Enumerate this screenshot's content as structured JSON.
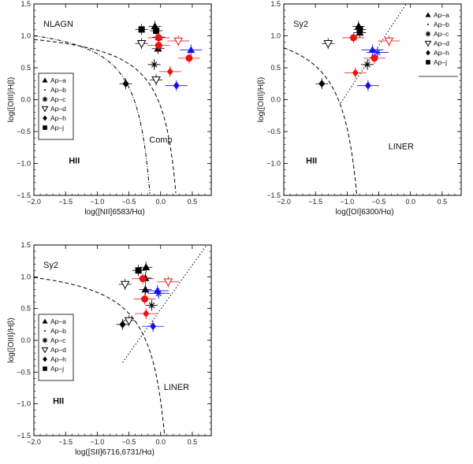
{
  "chart_data": [
    {
      "id": "nii",
      "type": "scatter",
      "title": "NLAGN",
      "xlabel": "log([NII]6583/Hα)",
      "ylabel": "log([OIII]/Hβ)",
      "xlim": [
        -2.0,
        0.8
      ],
      "ylim": [
        -1.5,
        1.5
      ],
      "xticks": [
        -2.0,
        -1.5,
        -1.0,
        -0.5,
        0.0,
        0.5
      ],
      "xtick_labels": [
        "−2.0",
        "−1.5",
        "−1.0",
        "−0.5",
        "0.0",
        "0.5"
      ],
      "yticks": [
        1.5,
        1.0,
        0.5,
        0.0,
        -0.5,
        -1.0,
        -1.5
      ],
      "ytick_labels": [
        "1.5",
        "1.0",
        "0.5",
        "0.0",
        "−0.5",
        "−1.0",
        "−1.5"
      ],
      "region_labels": [
        {
          "text": "HII",
          "x": -1.45,
          "y": -1.0
        },
        {
          "text": "Comp",
          "x": -0.18,
          "y": -0.67
        }
      ],
      "legend": [
        "Ap–a",
        "Ap–b",
        "Ap–c",
        "Ap–d",
        "Ap–h",
        "Ap–j"
      ],
      "curves": [
        {
          "name": "Kewley 2001",
          "type": "kewley_nii",
          "style": "dashed"
        },
        {
          "name": "Kauffmann 2003",
          "type": "kauffmann_nii",
          "style": "dashdot"
        }
      ],
      "points": [
        {
          "series": "Ap–j",
          "marker": "square",
          "color": "#000000",
          "x": -0.3,
          "y": 1.1
        },
        {
          "series": "Ap–j",
          "marker": "square",
          "color": "#000000",
          "x": -0.07,
          "y": 1.08
        },
        {
          "series": "Ap–a",
          "marker": "triangle",
          "color": "#000000",
          "x": -0.09,
          "y": 1.15
        },
        {
          "series": "Ap–a",
          "marker": "triangle",
          "color": "#000000",
          "x": -0.03,
          "y": 0.98
        },
        {
          "series": "Ap–a",
          "marker": "triangle",
          "color": "#000000",
          "x": -0.04,
          "y": 0.8
        },
        {
          "series": "Ap–d",
          "marker": "triangle-down",
          "color": "#000000",
          "x": -0.3,
          "y": 0.88
        },
        {
          "series": "Ap–c",
          "marker": "star",
          "color": "#000000",
          "x": -0.1,
          "y": 0.55
        },
        {
          "series": "Ap–d",
          "marker": "triangle-down",
          "color": "#000000",
          "x": -0.07,
          "y": 0.31
        },
        {
          "series": "Ap–h",
          "marker": "diamond",
          "color": "#000000",
          "x": -0.55,
          "y": 0.25
        },
        {
          "series": "Ap–a",
          "marker": "circle",
          "color": "#ee1111",
          "x": -0.03,
          "y": 0.97
        },
        {
          "series": "Ap–a",
          "marker": "circle",
          "color": "#ee1111",
          "x": -0.03,
          "y": 0.85
        },
        {
          "series": "Ap–a",
          "marker": "circle",
          "color": "#ee1111",
          "x": 0.45,
          "y": 0.65
        },
        {
          "series": "Ap–d",
          "marker": "triangle-down",
          "color": "#ee1111",
          "x": 0.28,
          "y": 0.92
        },
        {
          "series": "Ap–h",
          "marker": "diamond",
          "color": "#ee1111",
          "x": 0.15,
          "y": 0.44
        },
        {
          "series": "Ap–a",
          "marker": "triangle",
          "color": "#1111ee",
          "x": 0.48,
          "y": 0.78
        },
        {
          "series": "Ap–h",
          "marker": "diamond",
          "color": "#1111ee",
          "x": 0.25,
          "y": 0.22
        }
      ]
    },
    {
      "id": "oi",
      "type": "scatter",
      "title": "Sy2",
      "xlabel": "log([OI]6300/Hα)",
      "ylabel": "log([OIII]/Hβ)",
      "xlim": [
        -2.0,
        0.8
      ],
      "ylim": [
        -1.5,
        1.5
      ],
      "xticks": [
        -2.0,
        -1.5,
        -1.0,
        -0.5,
        0.0,
        0.5
      ],
      "xtick_labels": [
        "−2.0",
        "−1.5",
        "−1.0",
        "−0.5",
        "0.0",
        "0.5"
      ],
      "yticks": [
        1.5,
        1.0,
        0.5,
        0.0,
        -0.5,
        -1.0,
        -1.5
      ],
      "ytick_labels": [
        "1.5",
        "1.0",
        "0.5",
        "0.0",
        "−0.5",
        "−1.0",
        "−1.5"
      ],
      "region_labels": [
        {
          "text": "HII",
          "x": -1.65,
          "y": -1.0
        },
        {
          "text": "LINER",
          "x": -0.35,
          "y": -0.78
        }
      ],
      "legend": [
        "Ap–a",
        "Ap–b",
        "Ap–c",
        "Ap–d",
        "Ap–h",
        "Ap–j"
      ],
      "curves": [
        {
          "name": "Kewley 2001",
          "type": "kewley_oi",
          "style": "dashed"
        },
        {
          "name": "Seyfert/LINER",
          "type": "line",
          "x1": -1.1,
          "y1": -0.05,
          "x2": 0.0,
          "y2": 1.6,
          "style": "dotted"
        }
      ],
      "points": [
        {
          "series": "Ap–j",
          "marker": "square",
          "color": "#000000",
          "x": -0.8,
          "y": 1.1
        },
        {
          "series": "Ap–a",
          "marker": "triangle",
          "color": "#000000",
          "x": -0.82,
          "y": 1.15
        },
        {
          "series": "Ap–a",
          "marker": "triangle",
          "color": "#000000",
          "x": -0.8,
          "y": 1.05
        },
        {
          "series": "Ap–d",
          "marker": "triangle-down",
          "color": "#000000",
          "x": -1.3,
          "y": 0.88
        },
        {
          "series": "Ap–c",
          "marker": "star",
          "color": "#000000",
          "x": -0.68,
          "y": 0.55
        },
        {
          "series": "Ap–h",
          "marker": "diamond",
          "color": "#000000",
          "x": -1.4,
          "y": 0.25
        },
        {
          "series": "Ap–a",
          "marker": "circle",
          "color": "#ee1111",
          "x": -0.9,
          "y": 0.97
        },
        {
          "series": "Ap–a",
          "marker": "circle",
          "color": "#ee1111",
          "x": -0.57,
          "y": 0.65
        },
        {
          "series": "Ap–d",
          "marker": "triangle-down",
          "color": "#ee1111",
          "x": -0.34,
          "y": 0.92
        },
        {
          "series": "Ap–h",
          "marker": "diamond",
          "color": "#ee1111",
          "x": -0.87,
          "y": 0.42
        },
        {
          "series": "Ap–a",
          "marker": "triangle",
          "color": "#1111ee",
          "x": -0.6,
          "y": 0.78
        },
        {
          "series": "Ap–c",
          "marker": "star",
          "color": "#1111ee",
          "x": -0.52,
          "y": 0.74
        },
        {
          "series": "Ap–h",
          "marker": "diamond",
          "color": "#1111ee",
          "x": -0.67,
          "y": 0.22
        }
      ]
    },
    {
      "id": "sii",
      "type": "scatter",
      "title": "Sy2",
      "xlabel": "log([SII]6716,6731/Hα)",
      "ylabel": "log([OIII]/Hβ)",
      "xlim": [
        -2.0,
        0.8
      ],
      "ylim": [
        -1.5,
        1.5
      ],
      "xticks": [
        -2.0,
        -1.5,
        -1.0,
        -0.5,
        0.0,
        0.5
      ],
      "xtick_labels": [
        "−2.0",
        "−1.5",
        "−1.0",
        "−0.5",
        "0.0",
        "0.5"
      ],
      "yticks": [
        1.5,
        1.0,
        0.5,
        0.0,
        -0.5,
        -1.0,
        -1.5
      ],
      "ytick_labels": [
        "1.5",
        "1.0",
        "0.5",
        "0.0",
        "−0.5",
        "−1.0",
        "−1.5"
      ],
      "region_labels": [
        {
          "text": "HII",
          "x": -1.7,
          "y": -1.0
        },
        {
          "text": "LINER",
          "x": 0.05,
          "y": -0.78
        }
      ],
      "legend": [
        "Ap–a",
        "Ap–b",
        "Ap–c",
        "Ap–d",
        "Ap–h",
        "Ap–j"
      ],
      "curves": [
        {
          "name": "Kewley 2001",
          "type": "kewley_sii",
          "style": "dashed"
        },
        {
          "name": "Seyfert/LINER",
          "type": "line",
          "x1": -0.6,
          "y1": -0.35,
          "x2": 0.8,
          "y2": 1.6,
          "style": "dotted"
        }
      ],
      "points": [
        {
          "series": "Ap–j",
          "marker": "square",
          "color": "#000000",
          "x": -0.35,
          "y": 1.1
        },
        {
          "series": "Ap–a",
          "marker": "triangle",
          "color": "#000000",
          "x": -0.23,
          "y": 1.15
        },
        {
          "series": "Ap–a",
          "marker": "triangle",
          "color": "#000000",
          "x": -0.24,
          "y": 0.98
        },
        {
          "series": "Ap–a",
          "marker": "triangle",
          "color": "#000000",
          "x": -0.24,
          "y": 0.8
        },
        {
          "series": "Ap–d",
          "marker": "triangle-down",
          "color": "#000000",
          "x": -0.56,
          "y": 0.88
        },
        {
          "series": "Ap–c",
          "marker": "star",
          "color": "#000000",
          "x": -0.14,
          "y": 0.55
        },
        {
          "series": "Ap–d",
          "marker": "triangle-down",
          "color": "#000000",
          "x": -0.5,
          "y": 0.31
        },
        {
          "series": "Ap–h",
          "marker": "diamond",
          "color": "#000000",
          "x": -0.6,
          "y": 0.25
        },
        {
          "series": "Ap–a",
          "marker": "circle",
          "color": "#ee1111",
          "x": -0.28,
          "y": 0.97
        },
        {
          "series": "Ap–a",
          "marker": "circle",
          "color": "#ee1111",
          "x": -0.25,
          "y": 0.65
        },
        {
          "series": "Ap–d",
          "marker": "triangle-down",
          "color": "#ee1111",
          "x": 0.12,
          "y": 0.92
        },
        {
          "series": "Ap–h",
          "marker": "diamond",
          "color": "#ee1111",
          "x": -0.23,
          "y": 0.42
        },
        {
          "series": "Ap–a",
          "marker": "triangle",
          "color": "#1111ee",
          "x": -0.05,
          "y": 0.78
        },
        {
          "series": "Ap–c",
          "marker": "star",
          "color": "#1111ee",
          "x": -0.03,
          "y": 0.74
        },
        {
          "series": "Ap–h",
          "marker": "diamond",
          "color": "#1111ee",
          "x": -0.12,
          "y": 0.22
        }
      ]
    }
  ]
}
